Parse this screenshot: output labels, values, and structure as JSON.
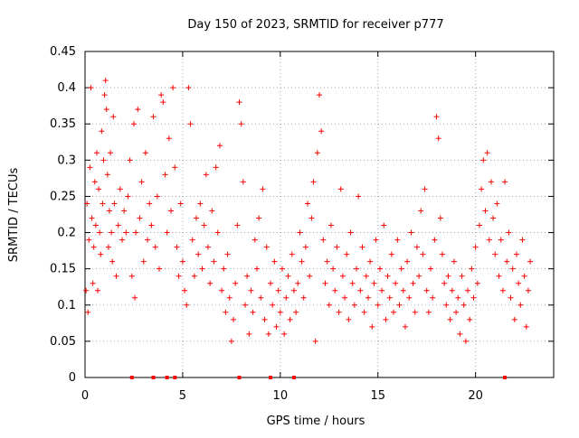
{
  "chart_data": {
    "type": "scatter",
    "title": "Day 150 of 2023, SRMTID for receiver p777",
    "xlabel": "GPS time / hours",
    "ylabel": "SRMTID / TECUs",
    "xlim": [
      0,
      24
    ],
    "ylim": [
      0,
      0.45
    ],
    "x_ticks": [
      {
        "value": 0,
        "label": "0"
      },
      {
        "value": 5,
        "label": "5"
      },
      {
        "value": 10,
        "label": "10"
      },
      {
        "value": 15,
        "label": "15"
      },
      {
        "value": 20,
        "label": "20"
      }
    ],
    "y_ticks": [
      {
        "value": 0,
        "label": "0"
      },
      {
        "value": 0.05,
        "label": "0.05"
      },
      {
        "value": 0.1,
        "label": "0.1"
      },
      {
        "value": 0.15,
        "label": "0.15"
      },
      {
        "value": 0.2,
        "label": "0.2"
      },
      {
        "value": 0.25,
        "label": "0.25"
      },
      {
        "value": 0.3,
        "label": "0.3"
      },
      {
        "value": 0.35,
        "label": "0.35"
      },
      {
        "value": 0.4,
        "label": "0.4"
      },
      {
        "value": 0.45,
        "label": "0.45"
      }
    ],
    "grid": true,
    "marker": "+",
    "color": "#ff0000",
    "series": [
      {
        "name": "SRMTID",
        "points": [
          [
            0.05,
            0.12
          ],
          [
            0.1,
            0.24
          ],
          [
            0.15,
            0.09
          ],
          [
            0.2,
            0.19
          ],
          [
            0.25,
            0.29
          ],
          [
            0.3,
            0.4
          ],
          [
            0.35,
            0.22
          ],
          [
            0.4,
            0.13
          ],
          [
            0.45,
            0.18
          ],
          [
            0.5,
            0.27
          ],
          [
            0.55,
            0.21
          ],
          [
            0.6,
            0.31
          ],
          [
            0.65,
            0.12
          ],
          [
            0.7,
            0.26
          ],
          [
            0.75,
            0.2
          ],
          [
            0.8,
            0.17
          ],
          [
            0.85,
            0.34
          ],
          [
            0.9,
            0.24
          ],
          [
            0.95,
            0.3
          ],
          [
            1.0,
            0.39
          ],
          [
            1.05,
            0.41
          ],
          [
            1.1,
            0.37
          ],
          [
            1.15,
            0.28
          ],
          [
            1.2,
            0.18
          ],
          [
            1.25,
            0.23
          ],
          [
            1.3,
            0.31
          ],
          [
            1.35,
            0.2
          ],
          [
            1.4,
            0.16
          ],
          [
            1.45,
            0.36
          ],
          [
            1.5,
            0.24
          ],
          [
            1.6,
            0.14
          ],
          [
            1.7,
            0.21
          ],
          [
            1.8,
            0.26
          ],
          [
            1.9,
            0.19
          ],
          [
            2.0,
            0.23
          ],
          [
            2.1,
            0.2
          ],
          [
            2.2,
            0.25
          ],
          [
            2.3,
            0.3
          ],
          [
            2.4,
            0.14
          ],
          [
            2.5,
            0.35
          ],
          [
            2.55,
            0.11
          ],
          [
            2.6,
            0.2
          ],
          [
            2.7,
            0.37
          ],
          [
            2.8,
            0.22
          ],
          [
            2.9,
            0.27
          ],
          [
            3.0,
            0.16
          ],
          [
            3.1,
            0.31
          ],
          [
            3.2,
            0.19
          ],
          [
            3.3,
            0.24
          ],
          [
            3.4,
            0.21
          ],
          [
            3.5,
            0.36
          ],
          [
            3.6,
            0.18
          ],
          [
            3.7,
            0.25
          ],
          [
            3.8,
            0.15
          ],
          [
            3.9,
            0.39
          ],
          [
            4.0,
            0.38
          ],
          [
            4.1,
            0.28
          ],
          [
            4.2,
            0.2
          ],
          [
            4.3,
            0.33
          ],
          [
            4.4,
            0.23
          ],
          [
            4.5,
            0.4
          ],
          [
            4.6,
            0.29
          ],
          [
            4.7,
            0.18
          ],
          [
            4.8,
            0.14
          ],
          [
            4.9,
            0.24
          ],
          [
            5.0,
            0.16
          ],
          [
            5.1,
            0.12
          ],
          [
            5.2,
            0.1
          ],
          [
            5.3,
            0.4
          ],
          [
            5.4,
            0.35
          ],
          [
            5.5,
            0.19
          ],
          [
            5.6,
            0.14
          ],
          [
            5.7,
            0.22
          ],
          [
            5.8,
            0.17
          ],
          [
            5.9,
            0.24
          ],
          [
            6.0,
            0.15
          ],
          [
            6.1,
            0.21
          ],
          [
            6.2,
            0.28
          ],
          [
            6.3,
            0.18
          ],
          [
            6.4,
            0.13
          ],
          [
            6.5,
            0.23
          ],
          [
            6.6,
            0.16
          ],
          [
            6.7,
            0.29
          ],
          [
            6.8,
            0.2
          ],
          [
            6.9,
            0.32
          ],
          [
            7.0,
            0.12
          ],
          [
            7.1,
            0.15
          ],
          [
            7.2,
            0.09
          ],
          [
            7.3,
            0.17
          ],
          [
            7.4,
            0.11
          ],
          [
            7.5,
            0.05
          ],
          [
            7.6,
            0.08
          ],
          [
            7.7,
            0.13
          ],
          [
            7.8,
            0.21
          ],
          [
            7.9,
            0.38
          ],
          [
            8.0,
            0.35
          ],
          [
            8.1,
            0.27
          ],
          [
            8.2,
            0.1
          ],
          [
            8.3,
            0.14
          ],
          [
            8.4,
            0.06
          ],
          [
            8.5,
            0.12
          ],
          [
            8.6,
            0.09
          ],
          [
            8.7,
            0.19
          ],
          [
            8.8,
            0.15
          ],
          [
            8.9,
            0.22
          ],
          [
            9.0,
            0.11
          ],
          [
            9.1,
            0.26
          ],
          [
            9.2,
            0.08
          ],
          [
            9.3,
            0.18
          ],
          [
            9.4,
            0.06
          ],
          [
            9.5,
            0.13
          ],
          [
            9.6,
            0.1
          ],
          [
            9.7,
            0.16
          ],
          [
            9.8,
            0.07
          ],
          [
            9.9,
            0.12
          ],
          [
            10.0,
            0.09
          ],
          [
            10.1,
            0.15
          ],
          [
            10.2,
            0.06
          ],
          [
            10.3,
            0.11
          ],
          [
            10.4,
            0.14
          ],
          [
            10.5,
            0.08
          ],
          [
            10.6,
            0.17
          ],
          [
            10.7,
            0.12
          ],
          [
            10.8,
            0.09
          ],
          [
            10.9,
            0.13
          ],
          [
            11.0,
            0.2
          ],
          [
            11.1,
            0.16
          ],
          [
            11.2,
            0.11
          ],
          [
            11.3,
            0.18
          ],
          [
            11.4,
            0.24
          ],
          [
            11.5,
            0.14
          ],
          [
            11.6,
            0.22
          ],
          [
            11.7,
            0.27
          ],
          [
            11.8,
            0.05
          ],
          [
            11.9,
            0.31
          ],
          [
            12.0,
            0.39
          ],
          [
            12.1,
            0.34
          ],
          [
            12.2,
            0.19
          ],
          [
            12.3,
            0.13
          ],
          [
            12.4,
            0.16
          ],
          [
            12.5,
            0.1
          ],
          [
            12.6,
            0.21
          ],
          [
            12.7,
            0.15
          ],
          [
            12.8,
            0.12
          ],
          [
            12.9,
            0.18
          ],
          [
            13.0,
            0.09
          ],
          [
            13.1,
            0.26
          ],
          [
            13.2,
            0.14
          ],
          [
            13.3,
            0.11
          ],
          [
            13.4,
            0.17
          ],
          [
            13.5,
            0.08
          ],
          [
            13.6,
            0.2
          ],
          [
            13.7,
            0.13
          ],
          [
            13.8,
            0.1
          ],
          [
            13.9,
            0.15
          ],
          [
            14.0,
            0.25
          ],
          [
            14.1,
            0.12
          ],
          [
            14.2,
            0.18
          ],
          [
            14.3,
            0.09
          ],
          [
            14.4,
            0.14
          ],
          [
            14.5,
            0.11
          ],
          [
            14.6,
            0.16
          ],
          [
            14.7,
            0.07
          ],
          [
            14.8,
            0.13
          ],
          [
            14.9,
            0.19
          ],
          [
            15.0,
            0.1
          ],
          [
            15.1,
            0.15
          ],
          [
            15.2,
            0.12
          ],
          [
            15.3,
            0.21
          ],
          [
            15.4,
            0.08
          ],
          [
            15.5,
            0.14
          ],
          [
            15.6,
            0.11
          ],
          [
            15.7,
            0.17
          ],
          [
            15.8,
            0.09
          ],
          [
            15.9,
            0.13
          ],
          [
            16.0,
            0.19
          ],
          [
            16.1,
            0.1
          ],
          [
            16.2,
            0.15
          ],
          [
            16.3,
            0.12
          ],
          [
            16.4,
            0.07
          ],
          [
            16.5,
            0.16
          ],
          [
            16.6,
            0.11
          ],
          [
            16.7,
            0.2
          ],
          [
            16.8,
            0.13
          ],
          [
            16.9,
            0.09
          ],
          [
            17.0,
            0.18
          ],
          [
            17.1,
            0.14
          ],
          [
            17.2,
            0.23
          ],
          [
            17.3,
            0.17
          ],
          [
            17.4,
            0.26
          ],
          [
            17.5,
            0.12
          ],
          [
            17.6,
            0.09
          ],
          [
            17.7,
            0.15
          ],
          [
            17.8,
            0.11
          ],
          [
            17.9,
            0.19
          ],
          [
            18.0,
            0.36
          ],
          [
            18.1,
            0.33
          ],
          [
            18.2,
            0.22
          ],
          [
            18.3,
            0.17
          ],
          [
            18.4,
            0.13
          ],
          [
            18.5,
            0.1
          ],
          [
            18.6,
            0.14
          ],
          [
            18.7,
            0.08
          ],
          [
            18.8,
            0.12
          ],
          [
            18.9,
            0.16
          ],
          [
            19.0,
            0.09
          ],
          [
            19.1,
            0.11
          ],
          [
            19.2,
            0.06
          ],
          [
            19.3,
            0.14
          ],
          [
            19.4,
            0.1
          ],
          [
            19.5,
            0.05
          ],
          [
            19.6,
            0.12
          ],
          [
            19.7,
            0.08
          ],
          [
            19.8,
            0.15
          ],
          [
            19.9,
            0.11
          ],
          [
            20.0,
            0.18
          ],
          [
            20.1,
            0.13
          ],
          [
            20.2,
            0.21
          ],
          [
            20.3,
            0.26
          ],
          [
            20.4,
            0.3
          ],
          [
            20.5,
            0.23
          ],
          [
            20.6,
            0.31
          ],
          [
            20.7,
            0.19
          ],
          [
            20.8,
            0.27
          ],
          [
            20.9,
            0.22
          ],
          [
            21.0,
            0.17
          ],
          [
            21.1,
            0.24
          ],
          [
            21.2,
            0.14
          ],
          [
            21.3,
            0.19
          ],
          [
            21.4,
            0.12
          ],
          [
            21.5,
            0.27
          ],
          [
            21.6,
            0.16
          ],
          [
            21.7,
            0.2
          ],
          [
            21.8,
            0.11
          ],
          [
            21.9,
            0.15
          ],
          [
            22.0,
            0.08
          ],
          [
            22.1,
            0.17
          ],
          [
            22.2,
            0.13
          ],
          [
            22.3,
            0.1
          ],
          [
            22.4,
            0.19
          ],
          [
            22.5,
            0.14
          ],
          [
            22.6,
            0.07
          ],
          [
            22.7,
            0.12
          ],
          [
            22.8,
            0.16
          ]
        ]
      }
    ],
    "zero_markers": [
      2.4,
      3.5,
      4.2,
      4.6,
      7.9,
      9.5,
      10.7,
      21.5
    ]
  }
}
